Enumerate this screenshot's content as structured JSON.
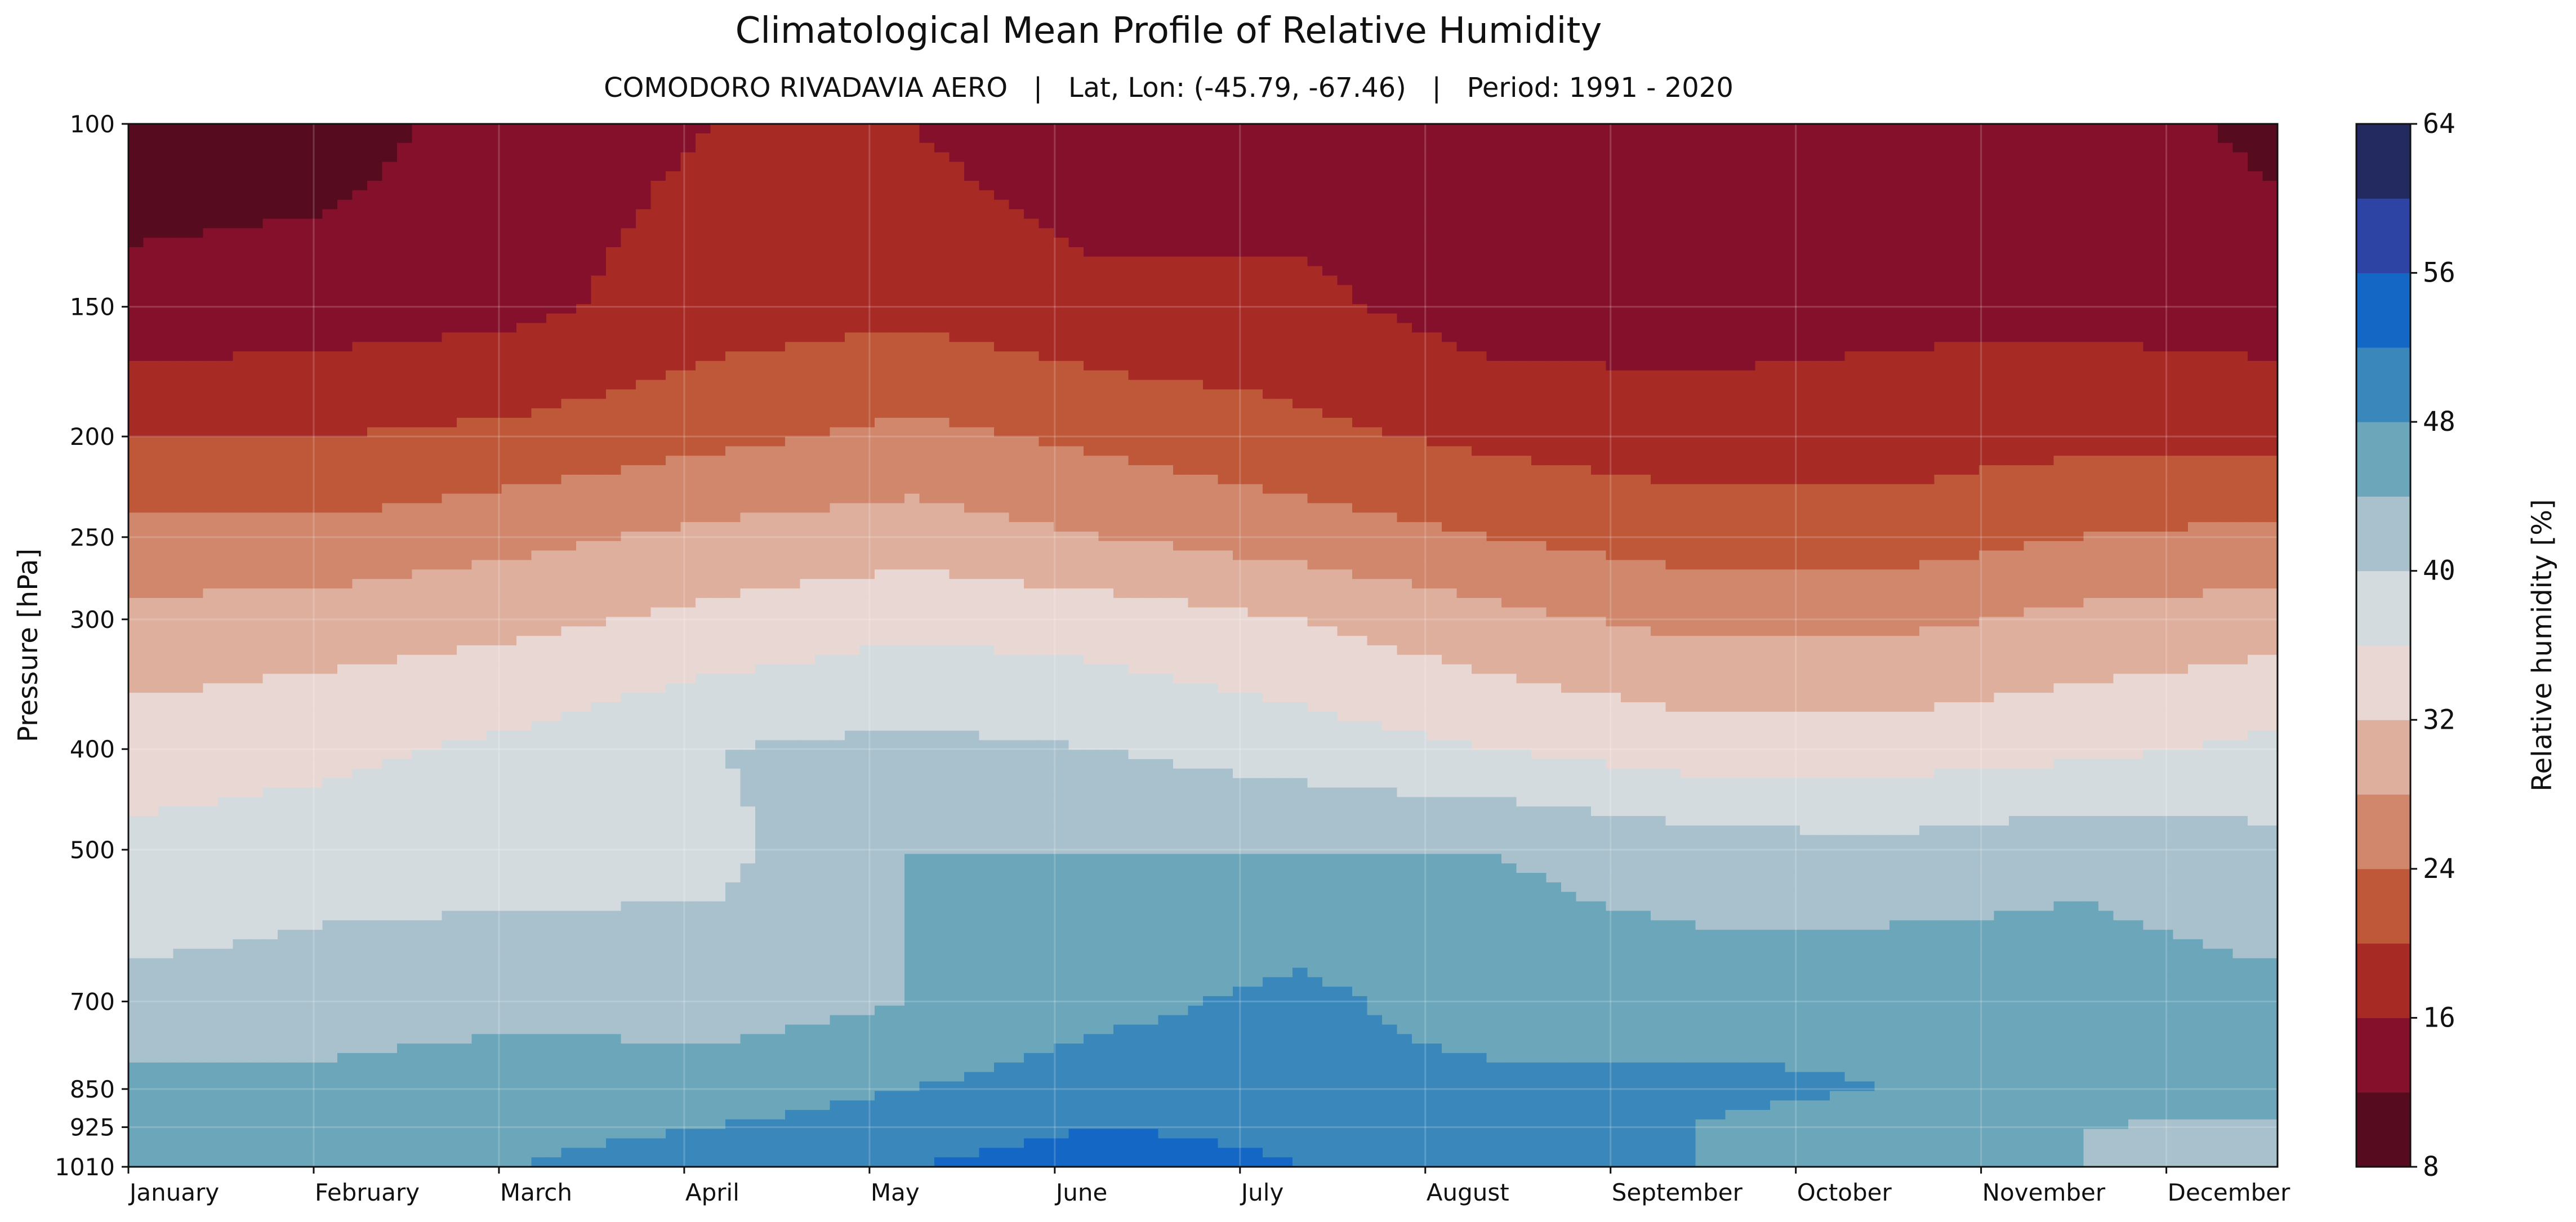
{
  "chart_data": {
    "type": "heatmap",
    "title": "Climatological Mean Profile of Relative Humidity",
    "subtitle": "COMODORO RIVADAVIA AERO   |   Lat, Lon: (-45.79, -67.46)   |   Period: 1991 - 2020",
    "xlabel": "",
    "ylabel": "Pressure [hPa]",
    "x_ticks": [
      "January",
      "February",
      "March",
      "April",
      "May",
      "June",
      "July",
      "August",
      "September",
      "October",
      "November",
      "December"
    ],
    "y_ticks": [
      100,
      150,
      200,
      250,
      300,
      400,
      500,
      700,
      850,
      925,
      1010
    ],
    "y_scale": "log",
    "ylim": [
      1010,
      100
    ],
    "colorbar": {
      "label": "Relative humidity [%]",
      "levels": [
        8,
        12,
        16,
        20,
        24,
        28,
        32,
        36,
        40,
        44,
        48,
        52,
        56,
        60,
        64
      ],
      "tick_labels": [
        "8",
        "16",
        "24",
        "32",
        "40",
        "48",
        "56",
        "64"
      ],
      "colors": [
        "#560b1e",
        "#84102b",
        "#a82a25",
        "#be5839",
        "#d0876c",
        "#dfaf9e",
        "#e9d7d3",
        "#d4dbdf",
        "#a9c1cc",
        "#6ba6ba",
        "#3a88bb",
        "#1467c4",
        "#2e44a5",
        "#222a5f"
      ]
    },
    "pressure_levels": [
      100,
      150,
      200,
      250,
      300,
      400,
      500,
      700,
      850,
      925,
      1010
    ],
    "months": [
      "Jan",
      "Feb",
      "Mar",
      "Apr",
      "May",
      "Jun",
      "Jul",
      "Aug",
      "Sep",
      "Oct",
      "Nov",
      "Dec"
    ],
    "values": [
      [
        10,
        10,
        14,
        16,
        16,
        13,
        13,
        13,
        13,
        13,
        14,
        11
      ],
      [
        13,
        14,
        15,
        18,
        19,
        17,
        17,
        14,
        14,
        15,
        15,
        14
      ],
      [
        20,
        20,
        21,
        23,
        25,
        23,
        21,
        19,
        18,
        18,
        19,
        19
      ],
      [
        25,
        25,
        27,
        29,
        30,
        28,
        26,
        24,
        22,
        22,
        24,
        25
      ],
      [
        29,
        30,
        31,
        33,
        35,
        34,
        32,
        29,
        27,
        27,
        29,
        30
      ],
      [
        34,
        35,
        37,
        40,
        41,
        40,
        38,
        36,
        34,
        34,
        35,
        37
      ],
      [
        37,
        38,
        38,
        39,
        44,
        44,
        44,
        44,
        42,
        41,
        43,
        41
      ],
      [
        41,
        42,
        43,
        42,
        44,
        47,
        49,
        46,
        46,
        47,
        46,
        45
      ],
      [
        45,
        45,
        46,
        46,
        48,
        50,
        49,
        49,
        49,
        48,
        47,
        46
      ],
      [
        45,
        45,
        47,
        48,
        50,
        52,
        51,
        49,
        48,
        46,
        44,
        43
      ],
      [
        44,
        46,
        48,
        50,
        52,
        54,
        52,
        50,
        48,
        46,
        44,
        43
      ]
    ]
  }
}
